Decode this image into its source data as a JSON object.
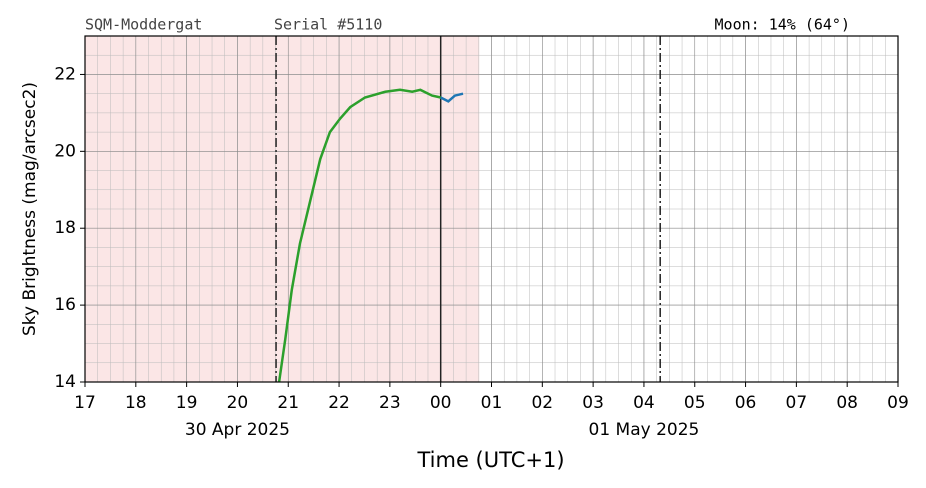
{
  "chart_data": {
    "type": "line",
    "header_left": "SQM-Moddergat",
    "header_mid": "Serial #5110",
    "header_right": "Moon: 14% (64°)",
    "y_label": "Sky Brightness (mag/arcsec2)",
    "x_label": "Time (UTC+1)",
    "date_labels": [
      {
        "text": "30 Apr 2025",
        "x": 20
      },
      {
        "text": "01 May 2025",
        "x": 28
      }
    ],
    "xlim": [
      17,
      33
    ],
    "ylim": [
      14,
      23
    ],
    "xticks": [
      17,
      18,
      19,
      20,
      21,
      22,
      23,
      {
        "value": 24,
        "label": "00"
      },
      {
        "value": 25,
        "label": "01"
      },
      {
        "value": 26,
        "label": "02"
      },
      {
        "value": 27,
        "label": "03"
      },
      {
        "value": 28,
        "label": "04"
      },
      {
        "value": 29,
        "label": "05"
      },
      {
        "value": 30,
        "label": "06"
      },
      {
        "value": 31,
        "label": "07"
      },
      {
        "value": 32,
        "label": "08"
      },
      {
        "value": 33,
        "label": "09"
      }
    ],
    "yticks": [
      14,
      16,
      18,
      20,
      22
    ],
    "grid": true,
    "shaded_region": {
      "x": [
        17,
        24.76
      ],
      "color": "#fbe6e6"
    },
    "vlines": [
      {
        "x": 20.76,
        "style": "dashdot"
      },
      {
        "x": 24.0,
        "style": "solid"
      },
      {
        "x": 28.32,
        "style": "dashdot"
      }
    ],
    "series": [
      {
        "color": "#2ca02c",
        "x": [
          20.82,
          20.94,
          21.07,
          21.23,
          21.43,
          21.63,
          21.82,
          22.02,
          22.22,
          22.51,
          22.91,
          23.2,
          23.44,
          23.6,
          23.83,
          24.0
        ],
        "values": [
          14.0,
          15.1,
          16.4,
          17.6,
          18.7,
          19.8,
          20.5,
          20.85,
          21.15,
          21.4,
          21.55,
          21.6,
          21.55,
          21.6,
          21.45,
          21.4
        ]
      },
      {
        "color": "#1f77b4",
        "x": [
          24.0,
          24.15,
          24.28,
          24.44
        ],
        "values": [
          21.4,
          21.3,
          21.45,
          21.5
        ]
      }
    ]
  }
}
